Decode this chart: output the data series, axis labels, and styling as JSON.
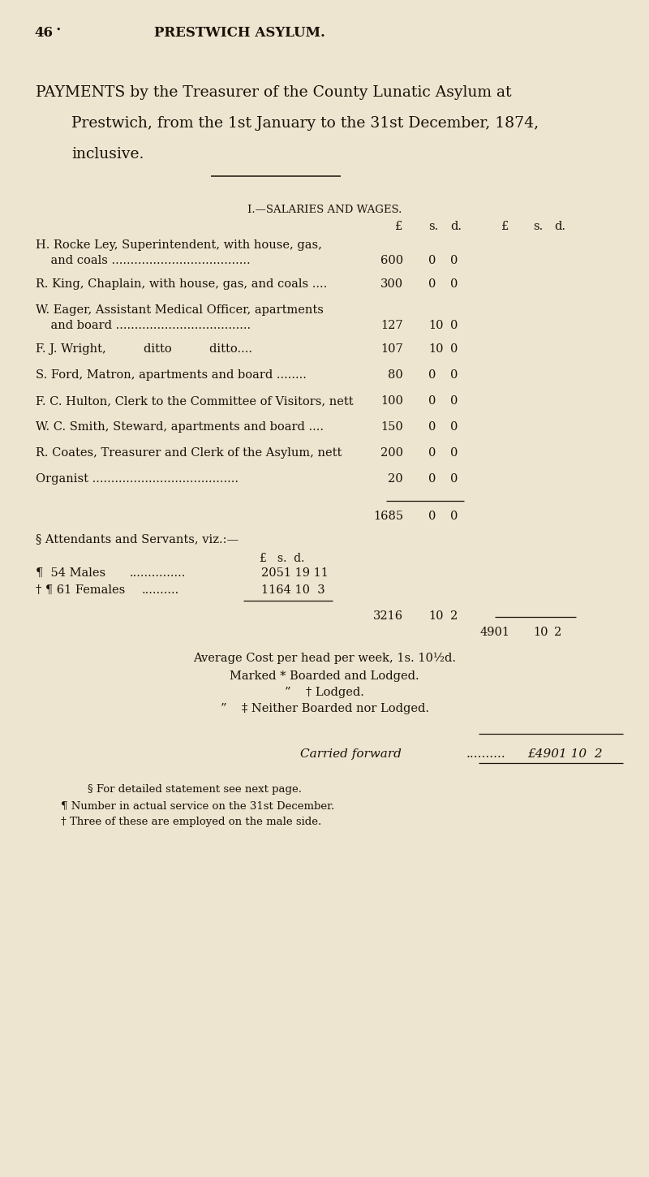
{
  "bg_color": "#ede5d0",
  "text_color": "#1a1208",
  "page_number": "46",
  "page_header": "PRESTWICH ASYLUM.",
  "title_line1": "PAYMENTS by the Treasurer of the County Lunatic Asylum at",
  "title_line2": "Prestwich, from the 1st January to the 31st December, 1874,",
  "title_line3": "inclusive.",
  "section_header": "I.—SALARIES AND WAGES.",
  "col_header_inner": [
    "£",
    "s.",
    "d."
  ],
  "col_header_outer": [
    "£",
    "s.",
    "d."
  ],
  "entries": [
    {
      "lines": [
        "H. Rocke Ley, Superintendent, with house, gas,",
        "    and coals ....................................."
      ],
      "p": "600",
      "s": "0",
      "d": "0",
      "val_line": 1
    },
    {
      "lines": [
        "R. King, Chaplain, with house, gas, and coals ...."
      ],
      "p": "300",
      "s": "0",
      "d": "0",
      "val_line": 0
    },
    {
      "lines": [
        "W. Eager, Assistant Medical Officer, apartments",
        "    and board ...................................."
      ],
      "p": "127",
      "s": "10",
      "d": "0",
      "val_line": 1
    },
    {
      "lines": [
        "F. J. Wright,          ditto          ditto...."
      ],
      "p": "107",
      "s": "10",
      "d": "0",
      "val_line": 0
    },
    {
      "lines": [
        "S. Ford, Matron, apartments and board ........"
      ],
      "p": "80",
      "s": "0",
      "d": "0",
      "val_line": 0
    },
    {
      "lines": [
        "F. C. Hulton, Clerk to the Committee of Visitors, nett"
      ],
      "p": "100",
      "s": "0",
      "d": "0",
      "val_line": 0
    },
    {
      "lines": [
        "W. C. Smith, Steward, apartments and board ...."
      ],
      "p": "150",
      "s": "0",
      "d": "0",
      "val_line": 0
    },
    {
      "lines": [
        "R. Coates, Treasurer and Clerk of the Asylum, nett"
      ],
      "p": "200",
      "s": "0",
      "d": "0",
      "val_line": 0
    },
    {
      "lines": [
        "Organist ......................................."
      ],
      "p": "20",
      "s": "0",
      "d": "0",
      "val_line": 0
    }
  ],
  "subtotal_p": "1685",
  "subtotal_s": "0",
  "subtotal_d": "0",
  "attendants_header": "§ Attendants and Servants, viz.:—",
  "males_prefix": "¶  54 Males",
  "males_dots": "...............",
  "males_val": "2051 19 11",
  "females_prefix": "† ¶ 61 Females",
  "females_dots": "..........",
  "females_val": "1164 10  3",
  "att_total_p": "3216",
  "att_total_s": "10",
  "att_total_d": "2",
  "grand_total_p": "4901",
  "grand_total_s": "10",
  "grand_total_d": "2",
  "avg_cost_line": "Average Cost per head per week, 1s. 10½d.",
  "mark1": "Marked * Boarded and Lodged.",
  "mark2": "”    † Lodged.",
  "mark3": "”    ‡ Neither Boarded nor Lodged.",
  "carried_label": "Carried forward",
  "carried_dots": "..........",
  "carried_val": "£4901 10  2",
  "fn1": "§ For detailed statement see next page.",
  "fn2": "¶ Number in actual service on the 31st December.",
  "fn3": "† Three of these are employed on the male side."
}
